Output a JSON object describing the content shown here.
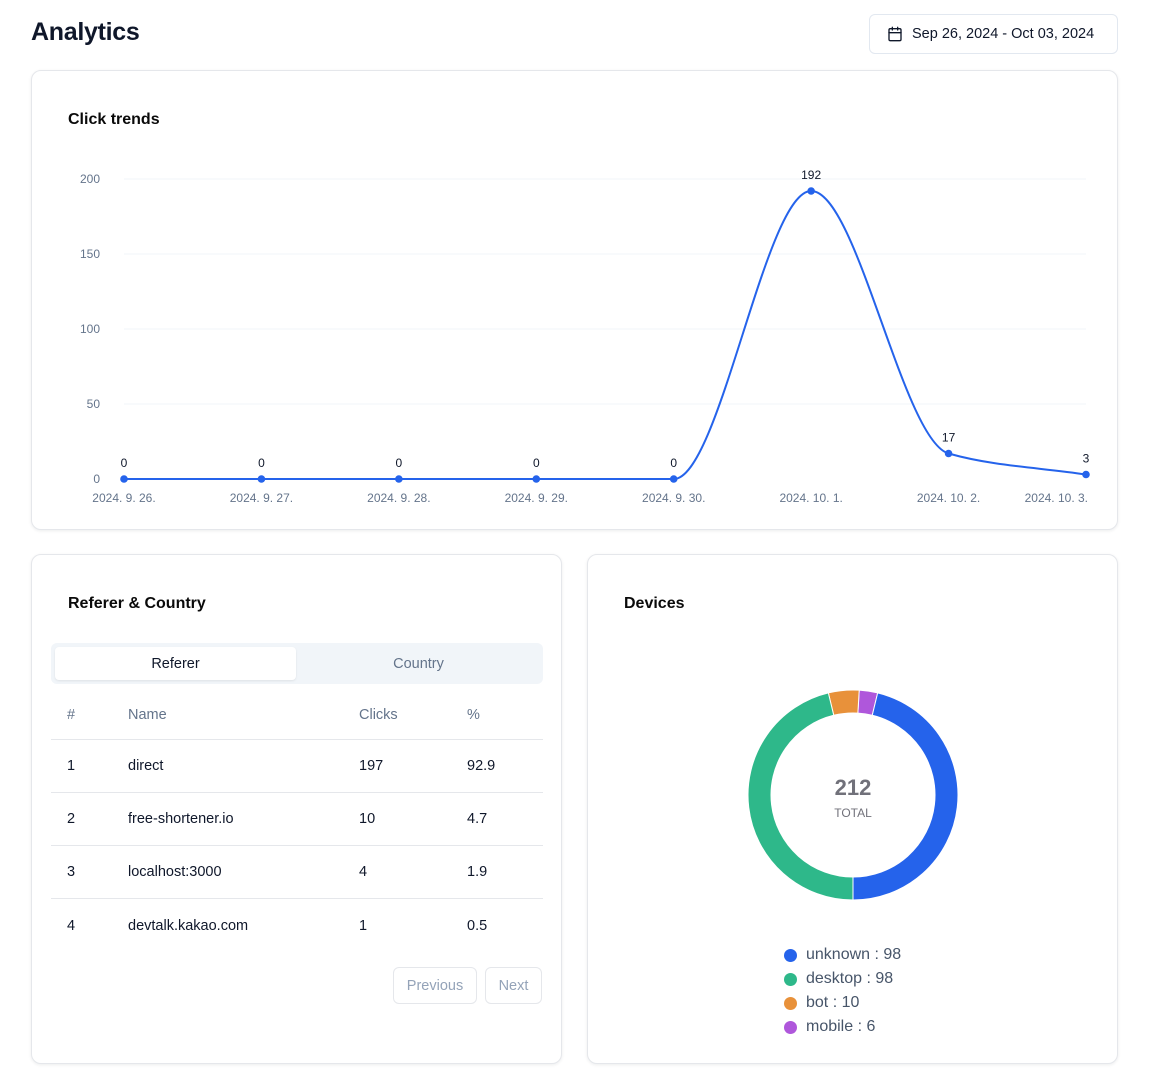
{
  "header": {
    "title": "Analytics",
    "date_range": "Sep 26, 2024 - Oct 03, 2024"
  },
  "trends": {
    "title": "Click trends",
    "chart_data": {
      "type": "line",
      "title": "Click trends",
      "x": [
        "2024. 9. 26.",
        "2024. 9. 27.",
        "2024. 9. 28.",
        "2024. 9. 29.",
        "2024. 9. 30.",
        "2024. 10. 1.",
        "2024. 10. 2.",
        "2024. 10. 3."
      ],
      "series": [
        {
          "values": [
            0,
            0,
            0,
            0,
            0,
            192,
            17,
            3
          ]
        }
      ],
      "yticks": [
        0,
        50,
        100,
        150,
        200
      ],
      "ylim": [
        0,
        200
      ],
      "grid": true,
      "color": "#2563eb"
    }
  },
  "referer": {
    "title": "Referer & Country",
    "tabs": [
      "Referer",
      "Country"
    ],
    "active_tab": "Referer",
    "columns": [
      "#",
      "Name",
      "Clicks",
      "%"
    ],
    "rows": [
      [
        "1",
        "direct",
        "197",
        "92.9"
      ],
      [
        "2",
        "free-shortener.io",
        "10",
        "4.7"
      ],
      [
        "3",
        "localhost:3000",
        "4",
        "1.9"
      ],
      [
        "4",
        "devtalk.kakao.com",
        "1",
        "0.5"
      ]
    ],
    "prev_label": "Previous",
    "next_label": "Next"
  },
  "devices": {
    "title": "Devices",
    "total": "212",
    "total_label": "TOTAL",
    "chart_data": {
      "type": "pie",
      "categories": [
        "unknown",
        "desktop",
        "bot",
        "mobile"
      ],
      "values": [
        98,
        98,
        10,
        6
      ],
      "colors": [
        "#2563eb",
        "#2eb88a",
        "#e8913a",
        "#af57db"
      ]
    },
    "legend": [
      "unknown : 98",
      "desktop : 98",
      "bot : 10",
      "mobile : 6"
    ]
  }
}
